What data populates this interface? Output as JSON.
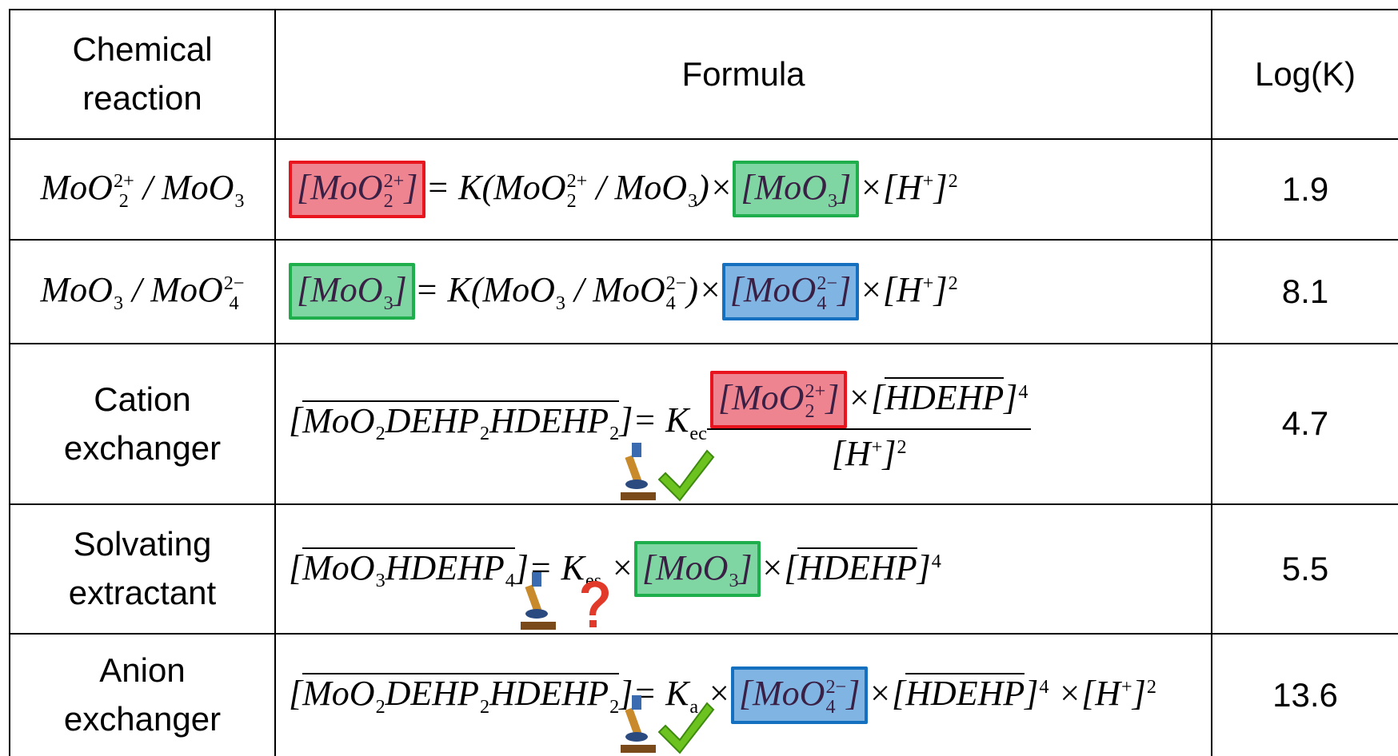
{
  "table": {
    "header": [
      "Chemical reaction",
      "Formula",
      "Log(K)"
    ],
    "box_styles": {
      "red": {
        "fill": "#ee8490",
        "stroke": "#e8141e"
      },
      "green": {
        "fill": "#80d6a3",
        "stroke": "#1fae4c"
      },
      "blue": {
        "fill": "#80b4e2",
        "stroke": "#1570c0"
      }
    },
    "rows": [
      {
        "reaction": [
          {
            "t": "MoO",
            "sub": "2",
            "sup": "2+"
          },
          {
            "t": " / MoO",
            "sub": "3"
          }
        ],
        "formula": [
          {
            "box": "red",
            "items": [
              {
                "t": "[MoO",
                "sub": "2",
                "sup": "2+"
              },
              {
                "t": "]"
              }
            ]
          },
          {
            "t": "= K(MoO",
            "sub": "2",
            "sup": "2+"
          },
          {
            "t": " / MoO",
            "sub": "3"
          },
          {
            "t": ")×"
          },
          {
            "box": "green",
            "items": [
              {
                "t": "[MoO",
                "sub": "3"
              },
              {
                "t": "]"
              }
            ]
          },
          {
            "t": "×[H",
            "sup": "+"
          },
          {
            "t": "]",
            "sup": "2"
          }
        ],
        "log_k": 1.9
      },
      {
        "reaction": [
          {
            "t": "MoO",
            "sub": "3"
          },
          {
            "t": " / MoO",
            "sub": "4",
            "sup": "2−"
          }
        ],
        "formula": [
          {
            "box": "green",
            "items": [
              {
                "t": "[MoO",
                "sub": "3"
              },
              {
                "t": "]"
              }
            ]
          },
          {
            "t": "= K(MoO",
            "sub": "3"
          },
          {
            "t": " / MoO",
            "sub": "4",
            "sup": "2−"
          },
          {
            "t": ")×"
          },
          {
            "box": "blue",
            "items": [
              {
                "t": "[MoO",
                "sub": "4",
                "sup": "2−"
              },
              {
                "t": "]"
              }
            ]
          },
          {
            "t": "×[H",
            "sup": "+"
          },
          {
            "t": "]",
            "sup": "2"
          }
        ],
        "log_k": 8.1
      },
      {
        "reaction": "Cation exchanger",
        "formula": [
          {
            "t": "["
          },
          {
            "overline": true,
            "items": [
              {
                "t": "MoO",
                "sub": "2"
              },
              {
                "t": "DEHP",
                "sub": "2"
              },
              {
                "t": "HDEHP",
                "sub": "2"
              }
            ]
          },
          {
            "t": "]= K",
            "sub": "ec"
          },
          {
            "frac": {
              "num": [
                {
                  "box": "red",
                  "items": [
                    {
                      "t": "[MoO",
                      "sub": "2",
                      "sup": "2+"
                    },
                    {
                      "t": "]"
                    }
                  ]
                },
                {
                  "t": "×["
                },
                {
                  "overline": true,
                  "items": [
                    {
                      "t": "HDEHP"
                    }
                  ]
                },
                {
                  "t": "]",
                  "sup": "4"
                }
              ],
              "den": [
                {
                  "t": "[H",
                  "sup": "+"
                },
                {
                  "t": "]",
                  "sup": "2"
                }
              ]
            }
          }
        ],
        "log_k": 4.7
      },
      {
        "reaction": "Solvating extractant",
        "formula": [
          {
            "t": "["
          },
          {
            "overline": true,
            "items": [
              {
                "t": "MoO",
                "sub": "3"
              },
              {
                "t": "HDEHP",
                "sub": "4"
              }
            ]
          },
          {
            "t": "]= K",
            "sub": "es"
          },
          {
            "t": " ×"
          },
          {
            "box": "green",
            "items": [
              {
                "t": "[MoO",
                "sub": "3"
              },
              {
                "t": "]"
              }
            ]
          },
          {
            "t": "×["
          },
          {
            "overline": true,
            "items": [
              {
                "t": "HDEHP"
              }
            ]
          },
          {
            "t": "]",
            "sup": "4"
          }
        ],
        "log_k": 5.5
      },
      {
        "reaction": "Anion exchanger",
        "formula": [
          {
            "t": "["
          },
          {
            "overline": true,
            "items": [
              {
                "t": "MoO",
                "sub": "2"
              },
              {
                "t": "DEHP",
                "sub": "2"
              },
              {
                "t": "HDEHP",
                "sub": "2"
              }
            ]
          },
          {
            "t": "]= K",
            "sub": "a"
          },
          {
            "t": " ×"
          },
          {
            "box": "blue",
            "items": [
              {
                "t": "[MoO",
                "sub": "4",
                "sup": "2−"
              },
              {
                "t": "]"
              }
            ]
          },
          {
            "t": "×["
          },
          {
            "overline": true,
            "items": [
              {
                "t": "HDEHP"
              }
            ]
          },
          {
            "t": "]",
            "sup": "4"
          },
          {
            "t": " ×[H",
            "sup": "+"
          },
          {
            "t": "]",
            "sup": "2"
          }
        ],
        "log_k": 13.6
      }
    ]
  }
}
